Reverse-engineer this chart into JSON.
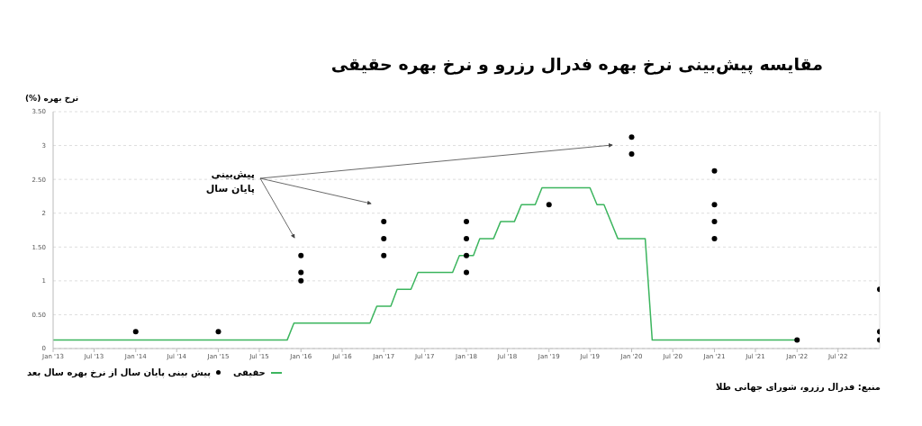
{
  "chart_data": {
    "type": "line",
    "title": "مقایسه پیش‌بینی نرخ بهره فدرال رزرو و نرخ بهره حقیقی",
    "ylabel": "نرخ بهره (%)",
    "annotations": [
      "پیش‌بینی\nپایان سال",
      "منبع: فدرال رزرو، شورای جهانی طلا"
    ],
    "xlim": [
      "2013-01",
      "2023-01"
    ],
    "xticks": [
      {
        "value": "2013-01",
        "label": "Jan '13"
      },
      {
        "value": "2013-07",
        "label": "Jul '13"
      },
      {
        "value": "2014-01",
        "label": "Jan '14"
      },
      {
        "value": "2014-07",
        "label": "Jul '14"
      },
      {
        "value": "2015-01",
        "label": "Jan '15"
      },
      {
        "value": "2015-07",
        "label": "Jul '15"
      },
      {
        "value": "2016-01",
        "label": "Jan '16"
      },
      {
        "value": "2016-07",
        "label": "Jul '16"
      },
      {
        "value": "2017-01",
        "label": "Jan '17"
      },
      {
        "value": "2017-07",
        "label": "Jul '17"
      },
      {
        "value": "2018-01",
        "label": "Jan '18"
      },
      {
        "value": "2018-07",
        "label": "Jul '18"
      },
      {
        "value": "2019-01",
        "label": "Jan '19"
      },
      {
        "value": "2019-07",
        "label": "Jul '19"
      },
      {
        "value": "2020-01",
        "label": "Jan '20"
      },
      {
        "value": "2020-07",
        "label": "Jul '20"
      },
      {
        "value": "2021-01",
        "label": "Jan '21"
      },
      {
        "value": "2021-07",
        "label": "Jul '21"
      },
      {
        "value": "2022-01",
        "label": "Jan '22"
      },
      {
        "value": "2022-07",
        "label": "Jul '22"
      }
    ],
    "ylim": [
      0,
      3.5
    ],
    "yticks": [
      0,
      {
        "value": 0.5,
        "label": "0.50"
      },
      1,
      {
        "value": 1.5,
        "label": "1.50"
      },
      2,
      {
        "value": 2.5,
        "label": "2.50"
      },
      3,
      {
        "value": 3.5,
        "label": "3.50"
      }
    ],
    "grid": "y",
    "legend": "bottom",
    "series": [
      {
        "name": "حقیقی",
        "color": "#3cb55e",
        "marker": "none",
        "line_style": "solid",
        "x": [
          "2013-01",
          "2015-11",
          "2015-12",
          "2016-11",
          "2016-12",
          "2017-02",
          "2017-03",
          "2017-05",
          "2017-06",
          "2017-11",
          "2017-12",
          "2018-02",
          "2018-03",
          "2018-05",
          "2018-06",
          "2018-08",
          "2018-09",
          "2018-11",
          "2018-12",
          "2019-07",
          "2019-08",
          "2019-09",
          "2019-11",
          "2020-03",
          "2020-04",
          "2022-01"
        ],
        "values": [
          0.125,
          0.125,
          0.375,
          0.375,
          0.625,
          0.625,
          0.875,
          0.875,
          1.125,
          1.125,
          1.375,
          1.375,
          1.625,
          1.625,
          1.875,
          1.875,
          2.125,
          2.125,
          2.375,
          2.375,
          2.125,
          2.125,
          1.625,
          1.625,
          0.125,
          0.125
        ]
      },
      {
        "name": "پیش بینی پایان سال از نرخ بهره سال بعد",
        "type": "scatter",
        "color": "#000000",
        "marker": "circle",
        "x": [
          "2014-01",
          "2015-01",
          "2016-01",
          "2016-01",
          "2016-01",
          "2017-01",
          "2017-01",
          "2017-01",
          "2018-01",
          "2018-01",
          "2018-01",
          "2018-01",
          "2019-01",
          "2020-01",
          "2020-01",
          "2021-01",
          "2021-01",
          "2021-01",
          "2021-01",
          "2022-01",
          "2023-01",
          "2023-01",
          "2023-01"
        ],
        "values": [
          0.25,
          0.25,
          1.375,
          1.125,
          1.0,
          1.875,
          1.625,
          1.375,
          1.875,
          1.625,
          1.375,
          1.125,
          2.125,
          3.125,
          2.875,
          2.625,
          2.125,
          1.875,
          1.625,
          0.125,
          0.875,
          0.25,
          0.125
        ]
      }
    ]
  }
}
